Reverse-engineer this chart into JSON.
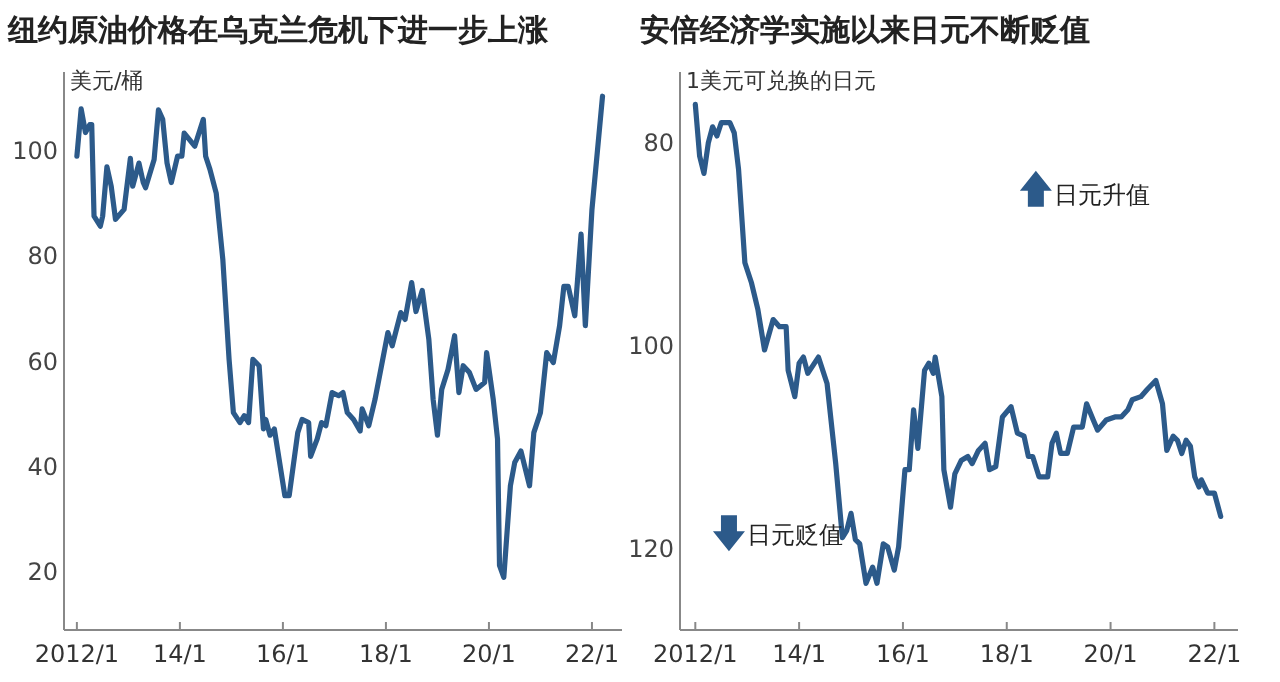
{
  "chart_data": [
    {
      "type": "line",
      "title": "纽约原油价格在乌克兰危机下进一步上涨",
      "ylabel": "美元/桶",
      "xlim": [
        "2011-10-01",
        "2022-08-01"
      ],
      "ylim": [
        9,
        115
      ],
      "yticks": [
        20,
        40,
        60,
        80,
        100
      ],
      "xticks": [
        {
          "value": "2012-01",
          "label": "2012/1"
        },
        {
          "value": "2014-01",
          "label": "14/1"
        },
        {
          "value": "2016-01",
          "label": "16/1"
        },
        {
          "value": "2018-01",
          "label": "18/1"
        },
        {
          "value": "2020-01",
          "label": "20/1"
        },
        {
          "value": "2022-01",
          "label": "22/1"
        }
      ],
      "grid": false,
      "marker": "none",
      "line_style": "solid",
      "series": [
        {
          "color": "#2c5a8a",
          "x": [
            "2012-01-01",
            "2012-02-01",
            "2012-03-01",
            "2012-04-01",
            "2012-04-15",
            "2012-05-01",
            "2012-06-15",
            "2012-07-01",
            "2012-08-01",
            "2012-09-01",
            "2012-10-01",
            "2012-12-01",
            "2013-01-15",
            "2013-02-01",
            "2013-03-15",
            "2013-04-15",
            "2013-05-01",
            "2013-07-01",
            "2013-08-01",
            "2013-09-01",
            "2013-10-01",
            "2013-11-01",
            "2013-12-15",
            "2014-01-15",
            "2014-02-01",
            "2014-04-15",
            "2014-06-15",
            "2014-07-01",
            "2014-08-01",
            "2014-09-15",
            "2014-11-01",
            "2014-12-15",
            "2015-01-15",
            "2015-03-01",
            "2015-04-01",
            "2015-05-01",
            "2015-06-01",
            "2015-07-15",
            "2015-08-15",
            "2015-09-01",
            "2015-10-01",
            "2015-11-01",
            "2016-01-15",
            "2016-02-15",
            "2016-04-15",
            "2016-05-15",
            "2016-07-01",
            "2016-07-15",
            "2016-09-01",
            "2016-10-01",
            "2016-11-01",
            "2016-12-15",
            "2017-02-01",
            "2017-03-01",
            "2017-04-01",
            "2017-05-15",
            "2017-07-01",
            "2017-07-15",
            "2017-09-01",
            "2017-10-15",
            "2018-01-15",
            "2018-02-15",
            "2018-04-15",
            "2018-05-15",
            "2018-07-01",
            "2018-08-01",
            "2018-09-15",
            "2018-11-01",
            "2018-12-01",
            "2019-01-01",
            "2019-02-01",
            "2019-03-15",
            "2019-05-01",
            "2019-06-01",
            "2019-07-01",
            "2019-08-15",
            "2019-10-01",
            "2019-12-01",
            "2019-12-15",
            "2020-02-01",
            "2020-03-01",
            "2020-03-15",
            "2020-04-15",
            "2020-06-01",
            "2020-07-01",
            "2020-08-15",
            "2020-10-15",
            "2020-11-15",
            "2021-01-01",
            "2021-02-15",
            "2021-04-01",
            "2021-05-15",
            "2021-06-15",
            "2021-07-15",
            "2021-09-01",
            "2021-10-15",
            "2021-11-15",
            "2022-01-01",
            "2022-03-15"
          ],
          "values": [
            99,
            108,
            103.5,
            105,
            105,
            87.6,
            85.7,
            87.6,
            97,
            93.3,
            87,
            88.9,
            98.6,
            93.3,
            97.7,
            94,
            93,
            98.4,
            107.8,
            106,
            97.7,
            94,
            99,
            99,
            103.4,
            100.9,
            106,
            99,
            96.5,
            92,
            79.4,
            60.4,
            50.3,
            48.4,
            49.7,
            48.4,
            60.4,
            59.2,
            47.2,
            49,
            46,
            47.2,
            34.5,
            34.5,
            46.5,
            49,
            48.4,
            42,
            45.3,
            48.4,
            47.8,
            54.1,
            53.5,
            54.1,
            50.3,
            49,
            46.8,
            51,
            47.8,
            52.8,
            65.5,
            63,
            69.3,
            68,
            75,
            69.5,
            73.5,
            64.2,
            52.8,
            46,
            54.7,
            58.5,
            64.9,
            54.1,
            59.2,
            57.9,
            54.7,
            56,
            61.7,
            52.8,
            45.3,
            21.3,
            19,
            36.4,
            40.8,
            43,
            36.4,
            46.5,
            50.3,
            61.7,
            59.8,
            66.8,
            74.3,
            74.3,
            68.7,
            84.2,
            66.8,
            88.9,
            110.4
          ]
        }
      ]
    },
    {
      "type": "line",
      "title": "安倍经济学实施以来日元不断贬值",
      "ylabel": "1美元可兑换的日元",
      "annotations": [
        "日元升值",
        "日元贬值"
      ],
      "xlim": [
        "2011-09-15",
        "2022-06-15"
      ],
      "ylim": [
        128,
        73
      ],
      "yticks": [
        80,
        100,
        120
      ],
      "xticks": [
        {
          "value": "2012-01",
          "label": "2012/1"
        },
        {
          "value": "2014-01",
          "label": "14/1"
        },
        {
          "value": "2016-01",
          "label": "16/1"
        },
        {
          "value": "2018-01",
          "label": "18/1"
        },
        {
          "value": "2020-01",
          "label": "20/1"
        },
        {
          "value": "2022-01",
          "label": "22/1"
        }
      ],
      "grid": false,
      "marker": "none",
      "line_style": "solid",
      "series": [
        {
          "color": "#2c5a8a",
          "x": [
            "2012-01-01",
            "2012-02-01",
            "2012-03-01",
            "2012-04-01",
            "2012-05-01",
            "2012-06-01",
            "2012-07-01",
            "2012-09-01",
            "2012-10-01",
            "2012-11-01",
            "2012-12-15",
            "2013-02-01",
            "2013-03-15",
            "2013-05-01",
            "2013-07-01",
            "2013-08-15",
            "2013-10-01",
            "2013-10-15",
            "2013-12-01",
            "2014-01-01",
            "2014-02-01",
            "2014-03-01",
            "2014-05-15",
            "2014-07-15",
            "2014-09-15",
            "2014-11-01",
            "2014-12-01",
            "2015-01-01",
            "2015-02-01",
            "2015-03-01",
            "2015-04-15",
            "2015-06-01",
            "2015-07-01",
            "2015-08-15",
            "2015-09-15",
            "2015-11-01",
            "2015-12-01",
            "2016-01-15",
            "2016-02-15",
            "2016-03-15",
            "2016-04-15",
            "2016-06-01",
            "2016-07-01",
            "2016-08-01",
            "2016-08-15",
            "2016-10-01",
            "2016-10-15",
            "2016-12-01",
            "2017-01-01",
            "2017-02-15",
            "2017-04-01",
            "2017-05-01",
            "2017-06-15",
            "2017-08-01",
            "2017-09-01",
            "2017-10-15",
            "2017-12-01",
            "2018-02-01",
            "2018-03-15",
            "2018-05-01",
            "2018-06-01",
            "2018-07-01",
            "2018-08-15",
            "2018-10-15",
            "2018-11-15",
            "2018-12-15",
            "2019-01-15",
            "2019-03-01",
            "2019-04-15",
            "2019-06-15",
            "2019-07-15",
            "2019-09-01",
            "2019-10-01",
            "2019-12-01",
            "2020-02-01",
            "2020-03-15",
            "2020-05-01",
            "2020-06-01",
            "2020-08-01",
            "2020-09-15",
            "2020-11-15",
            "2021-01-01",
            "2021-02-01",
            "2021-03-15",
            "2021-04-15",
            "2021-05-15",
            "2021-06-15",
            "2021-07-15",
            "2021-08-15",
            "2021-09-15",
            "2021-10-01",
            "2021-11-15",
            "2022-01-01",
            "2022-02-15"
          ],
          "values": [
            76.2,
            81.3,
            83,
            80,
            78.4,
            79.3,
            78,
            78,
            79,
            82.6,
            91.8,
            93.8,
            96.4,
            100.4,
            97.4,
            98.1,
            98.1,
            102.4,
            105,
            101.7,
            101.1,
            102.7,
            101.1,
            103.7,
            111.6,
            118.9,
            118.2,
            116.5,
            119.1,
            119.5,
            123.4,
            121.8,
            123.4,
            119.5,
            119.8,
            122.1,
            119.8,
            112.2,
            112.2,
            106.3,
            110.1,
            102.4,
            101.7,
            102.7,
            101.1,
            105,
            112.2,
            115.9,
            112.6,
            111.3,
            110.9,
            111.6,
            110.3,
            109.6,
            112.2,
            111.9,
            107,
            106,
            108.6,
            108.9,
            110.9,
            110.9,
            112.9,
            112.9,
            109.6,
            108.6,
            110.6,
            110.6,
            108,
            108,
            105.7,
            107.3,
            108.3,
            107.3,
            107,
            107,
            106.3,
            105.3,
            105,
            104.3,
            103.4,
            105.7,
            110.3,
            108.9,
            109.3,
            110.6,
            109.3,
            109.9,
            112.9,
            113.9,
            113.2,
            114.5,
            114.5,
            116.8
          ]
        }
      ]
    }
  ]
}
